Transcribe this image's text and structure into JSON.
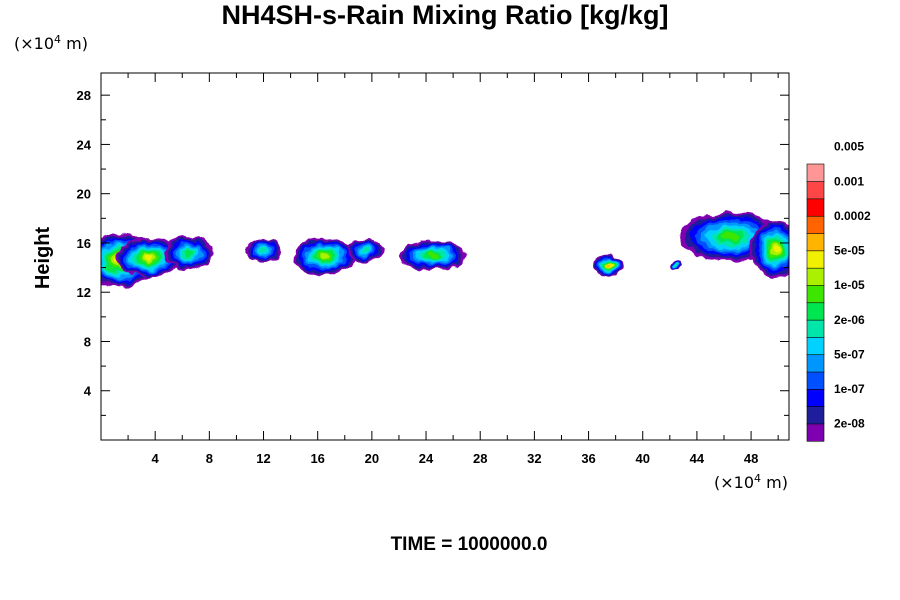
{
  "chart_data": {
    "type": "heatmap",
    "title": "NH4SH-s-Rain Mixing Ratio [kg/kg]",
    "ylabel": "Height",
    "x_unit": {
      "prefix": "(×10",
      "exp": "4",
      "suffix": " m)"
    },
    "y_unit": {
      "prefix": "(×10",
      "exp": "4",
      "suffix": " m)"
    },
    "xlim": [
      0,
      50.8
    ],
    "ylim": [
      0,
      29.8
    ],
    "x_ticks": [
      4,
      8,
      12,
      16,
      20,
      24,
      28,
      32,
      36,
      40,
      44,
      48
    ],
    "y_ticks": [
      4,
      8,
      12,
      16,
      20,
      24,
      28
    ],
    "colorbar": {
      "colors": [
        "#7f00b0",
        "#1e1e9c",
        "#0000ff",
        "#0050ff",
        "#0096ff",
        "#00d2ff",
        "#00e6aa",
        "#00e650",
        "#3ce600",
        "#aaf000",
        "#f0f000",
        "#ffb400",
        "#ff6400",
        "#ff0000",
        "#ff4646",
        "#ff9696"
      ],
      "labels": [
        {
          "text": "2e-08",
          "index": 1
        },
        {
          "text": "1e-07",
          "index": 3
        },
        {
          "text": "5e-07",
          "index": 5
        },
        {
          "text": "2e-06",
          "index": 7
        },
        {
          "text": "1e-05",
          "index": 9
        },
        {
          "text": "5e-05",
          "index": 11
        },
        {
          "text": "0.0002",
          "index": 13
        },
        {
          "text": "0.001",
          "index": 15
        },
        {
          "text": "0.005",
          "index": 17
        }
      ]
    },
    "field_blobs": [
      {
        "x": 1.5,
        "y": 14.6,
        "rx": 2.6,
        "ry": 2.2,
        "level": 11
      },
      {
        "x": 3.5,
        "y": 14.8,
        "rx": 2.4,
        "ry": 1.6,
        "level": 10
      },
      {
        "x": 6.5,
        "y": 15.2,
        "rx": 1.8,
        "ry": 1.3,
        "level": 7
      },
      {
        "x": 12.0,
        "y": 15.4,
        "rx": 1.4,
        "ry": 1.0,
        "level": 6
      },
      {
        "x": 16.5,
        "y": 14.9,
        "rx": 2.3,
        "ry": 1.5,
        "level": 9
      },
      {
        "x": 19.5,
        "y": 15.4,
        "rx": 1.3,
        "ry": 1.0,
        "level": 6
      },
      {
        "x": 24.5,
        "y": 15.0,
        "rx": 2.5,
        "ry": 1.2,
        "level": 8
      },
      {
        "x": 37.5,
        "y": 14.2,
        "rx": 1.1,
        "ry": 0.9,
        "level": 11
      },
      {
        "x": 42.4,
        "y": 14.2,
        "rx": 0.4,
        "ry": 0.35,
        "level": 6
      },
      {
        "x": 46.5,
        "y": 16.5,
        "rx": 3.8,
        "ry": 2.0,
        "level": 8
      },
      {
        "x": 49.8,
        "y": 15.5,
        "rx": 1.8,
        "ry": 2.3,
        "level": 10
      }
    ],
    "time_label": "TIME = 1000000.0"
  }
}
